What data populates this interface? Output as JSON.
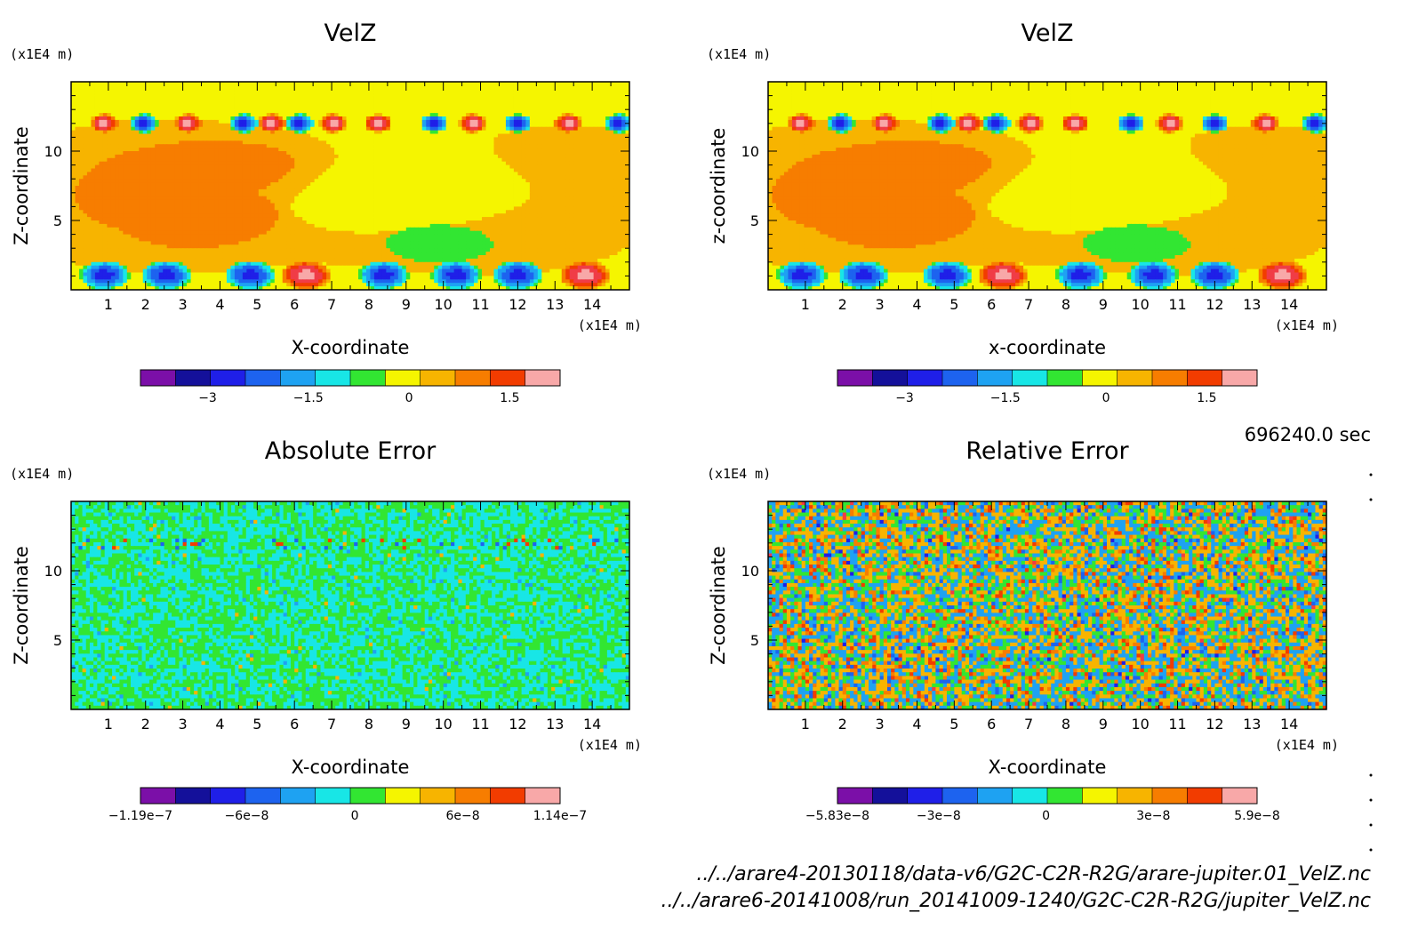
{
  "chart_data": [
    {
      "type": "heatmap",
      "id": "p1",
      "title": "VelZ",
      "xlabel": "X-coordinate",
      "ylabel": "Z-coordinate",
      "x_unit": "(x1E4 m)",
      "y_unit": "(x1E4 m)",
      "xlim": [
        0,
        15
      ],
      "ylim": [
        0,
        15
      ],
      "x_ticks": [
        1,
        2,
        3,
        4,
        5,
        6,
        7,
        8,
        9,
        10,
        11,
        12,
        13,
        14
      ],
      "y_ticks": [
        5,
        10
      ],
      "colorbar": {
        "ticks": [
          {
            "value": -3,
            "label": "−3"
          },
          {
            "value": -1.5,
            "label": "−1.5"
          },
          {
            "value": 0,
            "label": "0"
          },
          {
            "value": 1.5,
            "label": "1.5"
          }
        ],
        "min": -4,
        "max": 2.25
      },
      "pattern": "field"
    },
    {
      "type": "heatmap",
      "id": "p2",
      "title": "VelZ",
      "xlabel": "x-coordinate",
      "ylabel": "z-coordinate",
      "x_unit": "(x1E4 m)",
      "y_unit": "(x1E4 m)",
      "xlim": [
        0,
        15
      ],
      "ylim": [
        0,
        15
      ],
      "x_ticks": [
        1,
        2,
        3,
        4,
        5,
        6,
        7,
        8,
        9,
        10,
        11,
        12,
        13,
        14
      ],
      "y_ticks": [
        5,
        10
      ],
      "colorbar": {
        "ticks": [
          {
            "value": -3,
            "label": "−3"
          },
          {
            "value": -1.5,
            "label": "−1.5"
          },
          {
            "value": 0,
            "label": "0"
          },
          {
            "value": 1.5,
            "label": "1.5"
          }
        ],
        "min": -4,
        "max": 2.25
      },
      "pattern": "field"
    },
    {
      "type": "heatmap",
      "id": "p3",
      "title": "Absolute Error",
      "xlabel": "X-coordinate",
      "ylabel": "Z-coordinate",
      "x_unit": "(x1E4 m)",
      "y_unit": "(x1E4 m)",
      "xlim": [
        0,
        15
      ],
      "ylim": [
        0,
        15
      ],
      "x_ticks": [
        1,
        2,
        3,
        4,
        5,
        6,
        7,
        8,
        9,
        10,
        11,
        12,
        13,
        14
      ],
      "y_ticks": [
        5,
        10
      ],
      "colorbar": {
        "ticks": [
          {
            "value": -1.19e-07,
            "label": "−1.19e−7"
          },
          {
            "value": -6e-08,
            "label": "−6e−8"
          },
          {
            "value": 0,
            "label": "0"
          },
          {
            "value": 6e-08,
            "label": "6e−8"
          },
          {
            "value": 1.14e-07,
            "label": "1.14e−7"
          }
        ],
        "min": -1.19e-07,
        "max": 1.14e-07
      },
      "pattern": "absnoise"
    },
    {
      "type": "heatmap",
      "id": "p4",
      "title": "Relative Error",
      "xlabel": "X-coordinate",
      "ylabel": "Z-coordinate",
      "x_unit": "(x1E4 m)",
      "y_unit": "(x1E4 m)",
      "xlim": [
        0,
        15
      ],
      "ylim": [
        0,
        15
      ],
      "x_ticks": [
        1,
        2,
        3,
        4,
        5,
        6,
        7,
        8,
        9,
        10,
        11,
        12,
        13,
        14
      ],
      "y_ticks": [
        5,
        10
      ],
      "colorbar": {
        "ticks": [
          {
            "value": -5.83e-08,
            "label": "−5.83e−8"
          },
          {
            "value": -3e-08,
            "label": "−3e−8"
          },
          {
            "value": 0,
            "label": "0"
          },
          {
            "value": 3e-08,
            "label": "3e−8"
          },
          {
            "value": 5.9e-08,
            "label": "5.9e−8"
          }
        ],
        "min": -5.83e-08,
        "max": 5.9e-08
      },
      "pattern": "relnoise"
    }
  ],
  "palette": [
    "#7b0fa8",
    "#14109a",
    "#1f1fe8",
    "#1d63ef",
    "#1ea2f2",
    "#18e6e6",
    "#32e632",
    "#f5f500",
    "#f7b400",
    "#f77d00",
    "#f23c00",
    "#f03c46",
    "#f8a8a8"
  ],
  "time_label": "696240.0 sec",
  "files": [
    "../../arare4-20130118/data-v6/G2C-C2R-R2G/arare-jupiter.01_VelZ.nc",
    "../../arare6-20141008/run_20141009-1240/G2C-C2R-R2G/jupiter_VelZ.nc"
  ]
}
